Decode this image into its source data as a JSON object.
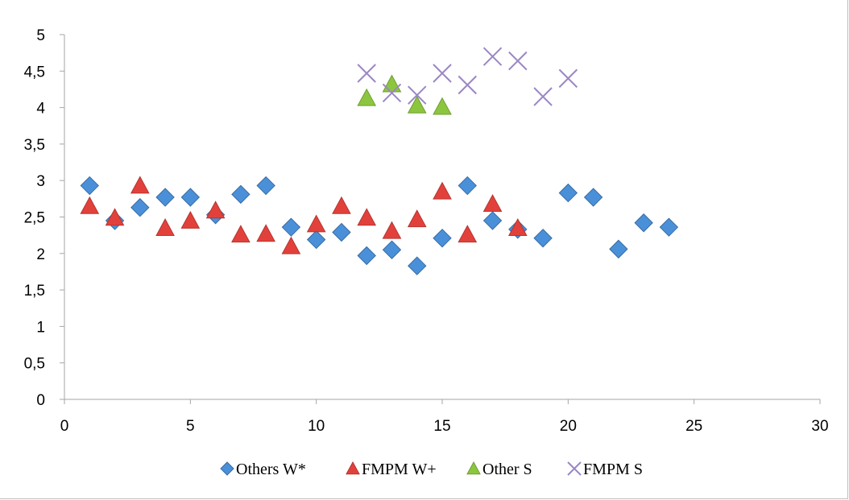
{
  "chart_data": {
    "type": "scatter",
    "xlim": [
      0,
      30
    ],
    "ylim": [
      0,
      5
    ],
    "x_ticks": [
      0,
      5,
      10,
      15,
      20,
      25,
      30
    ],
    "y_ticks": [
      0,
      0.5,
      1,
      1.5,
      2,
      2.5,
      3,
      3.5,
      4,
      4.5,
      5
    ],
    "x_tick_labels": [
      "0",
      "5",
      "10",
      "15",
      "20",
      "25",
      "30"
    ],
    "y_tick_labels": [
      "0",
      "0,5",
      "1",
      "1,5",
      "2",
      "2,5",
      "3",
      "3,5",
      "4",
      "4,5",
      "5"
    ],
    "grid": false,
    "legend_position": "bottom",
    "series": [
      {
        "name": "Others W*",
        "marker": "diamond",
        "color": "#4a90d9",
        "x": [
          1,
          2,
          3,
          4,
          5,
          6,
          7,
          8,
          9,
          10,
          11,
          12,
          13,
          14,
          15,
          16,
          17,
          18,
          19,
          20,
          21,
          22,
          23,
          24
        ],
        "y": [
          2.93,
          2.45,
          2.63,
          2.77,
          2.77,
          2.53,
          2.81,
          2.93,
          2.36,
          2.19,
          2.29,
          1.97,
          2.05,
          1.83,
          2.21,
          2.93,
          2.45,
          2.33,
          2.21,
          2.83,
          2.77,
          2.06,
          2.42,
          2.36
        ]
      },
      {
        "name": "FMPM W+",
        "marker": "triangle",
        "color": "#e2413b",
        "x": [
          1,
          2,
          3,
          4,
          5,
          6,
          7,
          8,
          9,
          10,
          11,
          12,
          13,
          14,
          15,
          16,
          17,
          18
        ],
        "y": [
          2.65,
          2.49,
          2.93,
          2.35,
          2.45,
          2.59,
          2.26,
          2.27,
          2.1,
          2.4,
          2.65,
          2.49,
          2.31,
          2.47,
          2.85,
          2.26,
          2.68,
          2.35
        ]
      },
      {
        "name": "Other S",
        "marker": "triangle",
        "color": "#8cc63f",
        "x": [
          12,
          13,
          14,
          15
        ],
        "y": [
          4.13,
          4.32,
          4.03,
          4.01
        ]
      },
      {
        "name": "FMPM S",
        "marker": "x",
        "color": "#9b87c4",
        "x": [
          12,
          13,
          14,
          15,
          16,
          17,
          18,
          19,
          20
        ],
        "y": [
          4.47,
          4.2,
          4.17,
          4.47,
          4.31,
          4.7,
          4.64,
          4.15,
          4.4
        ]
      }
    ]
  }
}
